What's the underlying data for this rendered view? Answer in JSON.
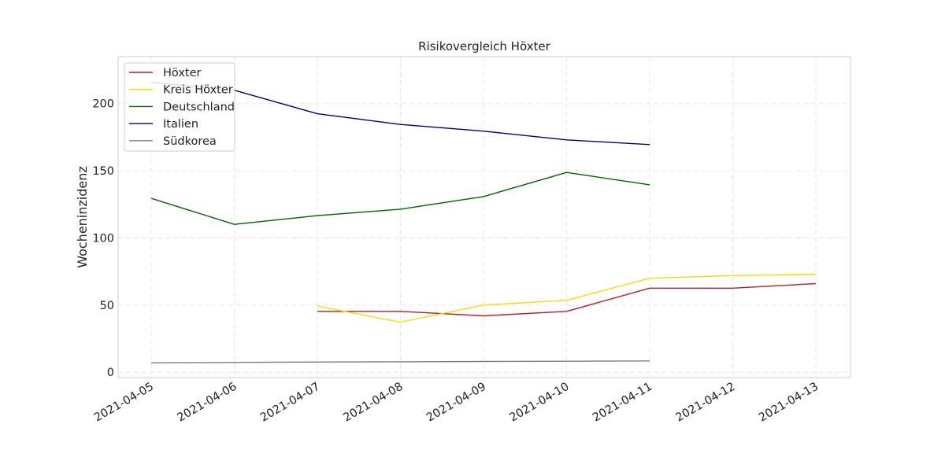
{
  "chart_data": {
    "type": "line",
    "title": "Risikovergleich Höxter",
    "xlabel": "",
    "ylabel": "Wocheninzidenz",
    "ylim": [
      -4,
      235
    ],
    "x_ticks": [
      "2021-04-05",
      "2021-04-06",
      "2021-04-07",
      "2021-04-08",
      "2021-04-09",
      "2021-04-10",
      "2021-04-11",
      "2021-04-12",
      "2021-04-13"
    ],
    "y_ticks": [
      0,
      50,
      100,
      150,
      200
    ],
    "grid": true,
    "legend_position": "top-left",
    "series": [
      {
        "name": "Höxter",
        "color": "#b22222",
        "x": [
          "2021-04-07",
          "2021-04-08",
          "2021-04-09",
          "2021-04-10",
          "2021-04-11",
          "2021-04-12",
          "2021-04-13"
        ],
        "values": [
          45.3,
          45.3,
          42.0,
          45.3,
          62.6,
          62.6,
          66.0
        ]
      },
      {
        "name": "Kreis Höxter",
        "color": "#ffd700",
        "x": [
          "2021-04-07",
          "2021-04-08",
          "2021-04-09",
          "2021-04-10",
          "2021-04-11",
          "2021-04-12",
          "2021-04-13"
        ],
        "values": [
          49.3,
          37.3,
          50.0,
          53.6,
          70.0,
          72.0,
          72.9
        ]
      },
      {
        "name": "Deutschland",
        "color": "#006400",
        "x": [
          "2021-04-05",
          "2021-04-06",
          "2021-04-07",
          "2021-04-08",
          "2021-04-09",
          "2021-04-10",
          "2021-04-11"
        ],
        "values": [
          129.5,
          110.1,
          116.6,
          121.4,
          130.8,
          148.8,
          139.6
        ]
      },
      {
        "name": "Italien",
        "color": "#000080",
        "x": [
          "2021-04-05",
          "2021-04-06",
          "2021-04-07",
          "2021-04-08",
          "2021-04-09",
          "2021-04-10",
          "2021-04-11"
        ],
        "values": [
          216.0,
          210.0,
          192.5,
          184.5,
          179.5,
          173.0,
          169.5
        ]
      },
      {
        "name": "Südkorea",
        "color": "#708090",
        "x": [
          "2021-04-05",
          "2021-04-06",
          "2021-04-07",
          "2021-04-08",
          "2021-04-09",
          "2021-04-10",
          "2021-04-11"
        ],
        "values": [
          7.0,
          7.3,
          7.6,
          7.8,
          8.0,
          8.2,
          8.4
        ]
      }
    ]
  }
}
